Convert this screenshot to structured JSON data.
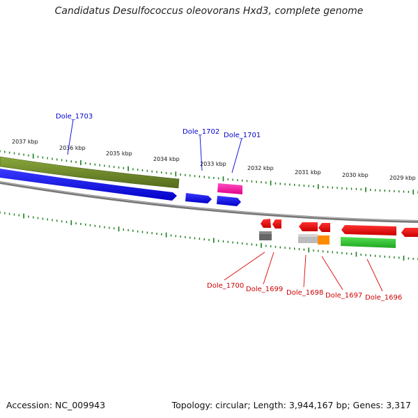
{
  "title": "Candidatus Desulfococcus oleovorans Hxd3, complete genome",
  "accession": "Accession: NC_009943",
  "footer": "Topology: circular; Length: 3,944,167 bp; Genes: 3,317",
  "kbp_labels": [
    "2037 kbp",
    "2036 kbp",
    "2035 kbp",
    "2034 kbp",
    "2033 kbp",
    "2032 kbp",
    "2031 kbp",
    "2030 kbp",
    "2029 kbp"
  ],
  "genes_top": [
    "Dole_1703",
    "Dole_1702",
    "Dole_1701"
  ],
  "genes_bottom": [
    "Dole_1700",
    "Dole_1699",
    "Dole_1698",
    "Dole_1697",
    "Dole_1696"
  ],
  "colors": {
    "forward_strand": "#0000ee",
    "reverse_strand": "#ee0000",
    "olive_feature": "#6f8c2a",
    "pink_feature": "#ff1aa0",
    "green_feature": "#2ecc2e",
    "orange_feature": "#ff8c00",
    "grey_feature": "#bbbbbb",
    "tick": "#1a7a1a",
    "backbone": "#888888"
  }
}
